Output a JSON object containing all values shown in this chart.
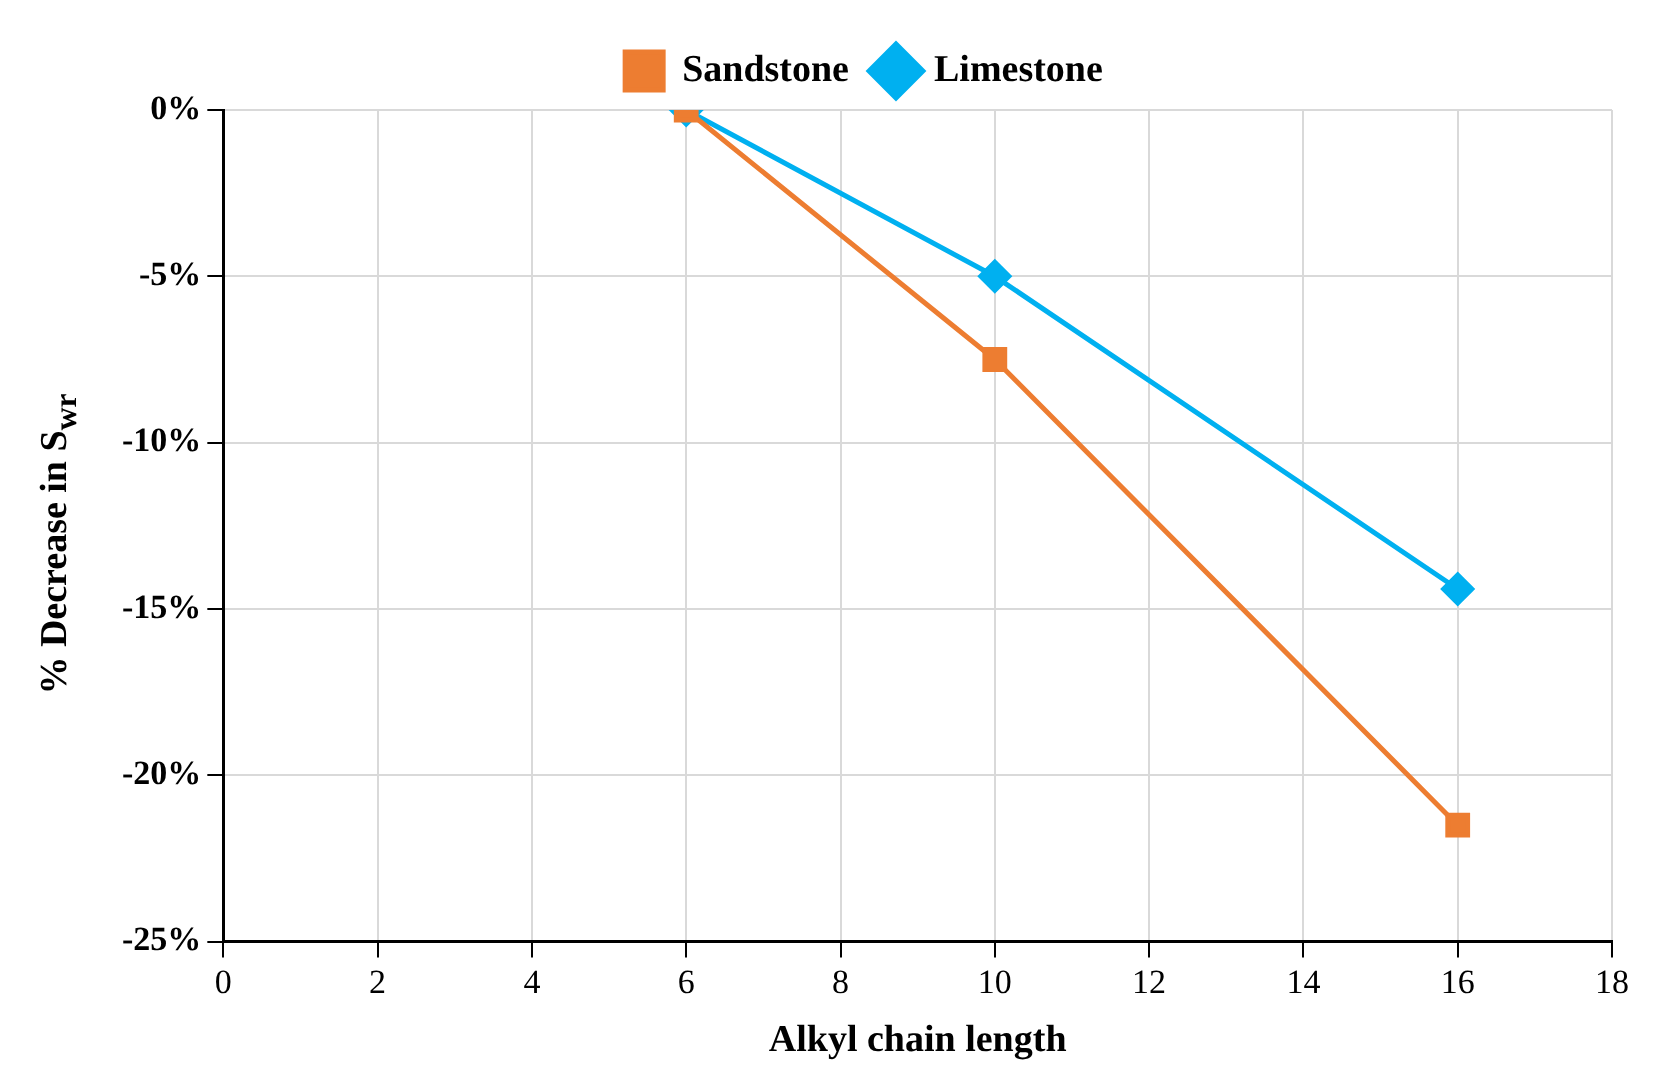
{
  "chart_data": {
    "type": "line",
    "xlabel": "Alkyl chain length",
    "ylabel": "% Decrease in S$_{wr}$",
    "xlim": [
      0,
      18
    ],
    "xticks": [
      0,
      2,
      4,
      6,
      8,
      10,
      12,
      14,
      16,
      18
    ],
    "ylim": [
      -25,
      0
    ],
    "yticks": [
      {
        "value": -25,
        "label": "-25%"
      },
      {
        "value": -20,
        "label": "-20%"
      },
      {
        "value": -15,
        "label": "-15%"
      },
      {
        "value": -10,
        "label": "-10%"
      },
      {
        "value": -5,
        "label": "-5%"
      },
      {
        "value": 0,
        "label": "0%"
      }
    ],
    "grid": true,
    "legend": "top",
    "line_style": "solid",
    "series": [
      {
        "name": "Sandstone",
        "color": "#ed7d31",
        "marker": "square",
        "x": [
          6,
          10,
          16
        ],
        "values": [
          0,
          -7.5,
          -21.5
        ]
      },
      {
        "name": "Limestone",
        "color": "#00b0f0",
        "marker": "diamond",
        "x": [
          6,
          10,
          16
        ],
        "values": [
          0,
          -5,
          -14.4
        ]
      }
    ]
  }
}
